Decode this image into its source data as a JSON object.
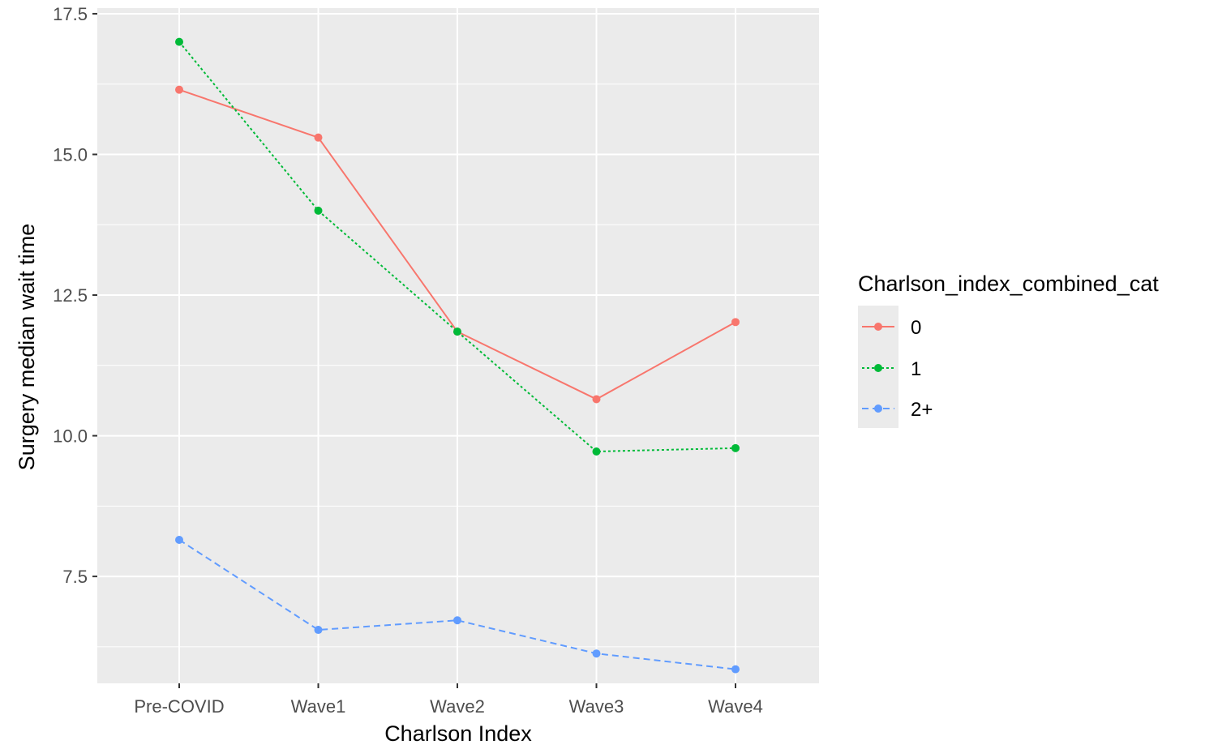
{
  "chart_data": {
    "type": "line",
    "xlabel": "Charlson Index",
    "ylabel": "Surgery median wait time",
    "categories": [
      "Pre-COVID",
      "Wave1",
      "Wave2",
      "Wave3",
      "Wave4"
    ],
    "ylim": [
      5.6,
      17.6
    ],
    "yticks": [
      7.5,
      10.0,
      12.5,
      15.0,
      17.5
    ],
    "ytick_labels": [
      "7.5",
      "10.0",
      "12.5",
      "15.0",
      "17.5"
    ],
    "grid": true,
    "legend_title": "Charlson_index_combined_cat",
    "legend_position": "right",
    "series": [
      {
        "name": "0",
        "color": "#F8766D",
        "dash": "solid",
        "values": [
          16.15,
          15.3,
          11.85,
          10.65,
          12.02
        ]
      },
      {
        "name": "1",
        "color": "#00BA38",
        "dash": "dotted",
        "values": [
          17.0,
          14.0,
          11.85,
          9.72,
          9.78
        ]
      },
      {
        "name": "2+",
        "color": "#619CFF",
        "dash": "dashed",
        "values": [
          8.15,
          6.55,
          6.72,
          6.13,
          5.85
        ]
      }
    ]
  }
}
